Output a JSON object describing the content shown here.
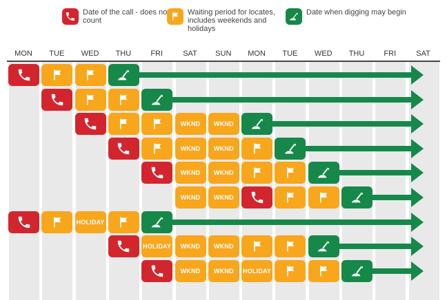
{
  "legend": [
    {
      "key": "call",
      "color": "#d3252e",
      "icon": "phone-icon",
      "text": "Date of the call - does not count"
    },
    {
      "key": "wait",
      "color": "#f8a61c",
      "icon": "flag-icon",
      "text": "Waiting period for locates, includes weekends and holidays"
    },
    {
      "key": "dig",
      "color": "#16884a",
      "icon": "shovel-icon",
      "text": "Date when digging may begin"
    }
  ],
  "days": [
    "MON",
    "TUE",
    "WED",
    "THU",
    "FRI",
    "SAT",
    "SUN",
    "MON",
    "TUE",
    "WED",
    "THU",
    "FRI",
    "SAT"
  ],
  "colors": {
    "call": "#d3252e",
    "wait": "#f8a61c",
    "dig": "#16884a",
    "stripe": "#e9e9ea"
  },
  "labels": {
    "wknd": "WKND",
    "holiday": "HOLIDAY"
  },
  "rows": [
    {
      "cells": [
        {
          "col": 0,
          "type": "call"
        },
        {
          "col": 1,
          "type": "wait"
        },
        {
          "col": 2,
          "type": "wait"
        },
        {
          "col": 3,
          "type": "dig"
        }
      ]
    },
    {
      "cells": [
        {
          "col": 1,
          "type": "call"
        },
        {
          "col": 2,
          "type": "wait"
        },
        {
          "col": 3,
          "type": "wait"
        },
        {
          "col": 4,
          "type": "dig"
        }
      ]
    },
    {
      "cells": [
        {
          "col": 2,
          "type": "call"
        },
        {
          "col": 3,
          "type": "wait"
        },
        {
          "col": 4,
          "type": "wait"
        },
        {
          "col": 5,
          "type": "wknd"
        },
        {
          "col": 6,
          "type": "wknd"
        },
        {
          "col": 7,
          "type": "dig"
        }
      ]
    },
    {
      "cells": [
        {
          "col": 3,
          "type": "call"
        },
        {
          "col": 4,
          "type": "wait"
        },
        {
          "col": 5,
          "type": "wknd"
        },
        {
          "col": 6,
          "type": "wknd"
        },
        {
          "col": 7,
          "type": "wait"
        },
        {
          "col": 8,
          "type": "dig"
        }
      ]
    },
    {
      "cells": [
        {
          "col": 4,
          "type": "call"
        },
        {
          "col": 5,
          "type": "wknd"
        },
        {
          "col": 6,
          "type": "wknd"
        },
        {
          "col": 7,
          "type": "wait"
        },
        {
          "col": 8,
          "type": "wait"
        },
        {
          "col": 9,
          "type": "dig"
        }
      ]
    },
    {
      "cells": [
        {
          "col": 5,
          "type": "wknd"
        },
        {
          "col": 6,
          "type": "wknd"
        },
        {
          "col": 7,
          "type": "call"
        },
        {
          "col": 8,
          "type": "wait"
        },
        {
          "col": 9,
          "type": "wait"
        },
        {
          "col": 10,
          "type": "dig"
        }
      ]
    },
    {
      "cells": [
        {
          "col": 0,
          "type": "call"
        },
        {
          "col": 1,
          "type": "wait"
        },
        {
          "col": 2,
          "type": "holiday"
        },
        {
          "col": 3,
          "type": "wait"
        },
        {
          "col": 4,
          "type": "dig"
        }
      ]
    },
    {
      "cells": [
        {
          "col": 3,
          "type": "call"
        },
        {
          "col": 4,
          "type": "holiday"
        },
        {
          "col": 5,
          "type": "wknd"
        },
        {
          "col": 6,
          "type": "wknd"
        },
        {
          "col": 7,
          "type": "wait"
        },
        {
          "col": 8,
          "type": "wait"
        },
        {
          "col": 9,
          "type": "dig"
        }
      ]
    },
    {
      "cells": [
        {
          "col": 4,
          "type": "call"
        },
        {
          "col": 5,
          "type": "wknd"
        },
        {
          "col": 6,
          "type": "wknd"
        },
        {
          "col": 7,
          "type": "holiday"
        },
        {
          "col": 8,
          "type": "wait"
        },
        {
          "col": 9,
          "type": "wait"
        },
        {
          "col": 10,
          "type": "dig"
        }
      ]
    }
  ]
}
